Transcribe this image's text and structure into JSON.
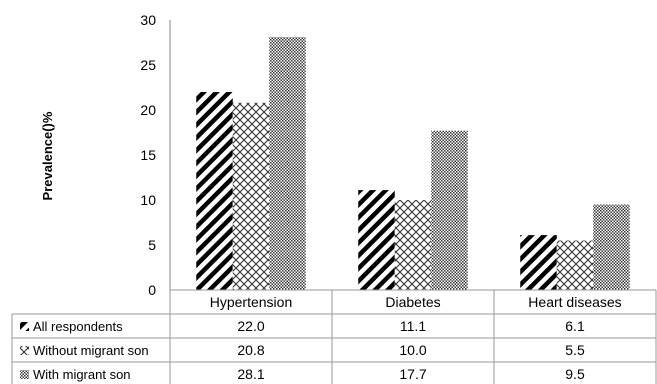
{
  "chart_data": {
    "type": "bar",
    "ylabel": "Prevalence()%",
    "ylim": [
      0,
      30
    ],
    "yticks": [
      0,
      5,
      10,
      15,
      20,
      25,
      30
    ],
    "grid": false,
    "legend": "data-table-below",
    "categories": [
      "Hypertension",
      "Diabetes",
      "Heart diseases"
    ],
    "series": [
      {
        "name": "All respondents",
        "pattern": "diagonal-stripes",
        "values": [
          22.0,
          11.1,
          6.1
        ],
        "labels": [
          "22.0",
          "11.1",
          "6.1"
        ]
      },
      {
        "name": "Without migrant son",
        "pattern": "crosshatch",
        "values": [
          20.8,
          10.0,
          5.5
        ],
        "labels": [
          "20.8",
          "10.0",
          "5.5"
        ]
      },
      {
        "name": "With migrant son",
        "pattern": "fine-checker",
        "values": [
          28.1,
          17.7,
          9.5
        ],
        "labels": [
          "28.1",
          "17.7",
          "9.5"
        ]
      }
    ]
  }
}
